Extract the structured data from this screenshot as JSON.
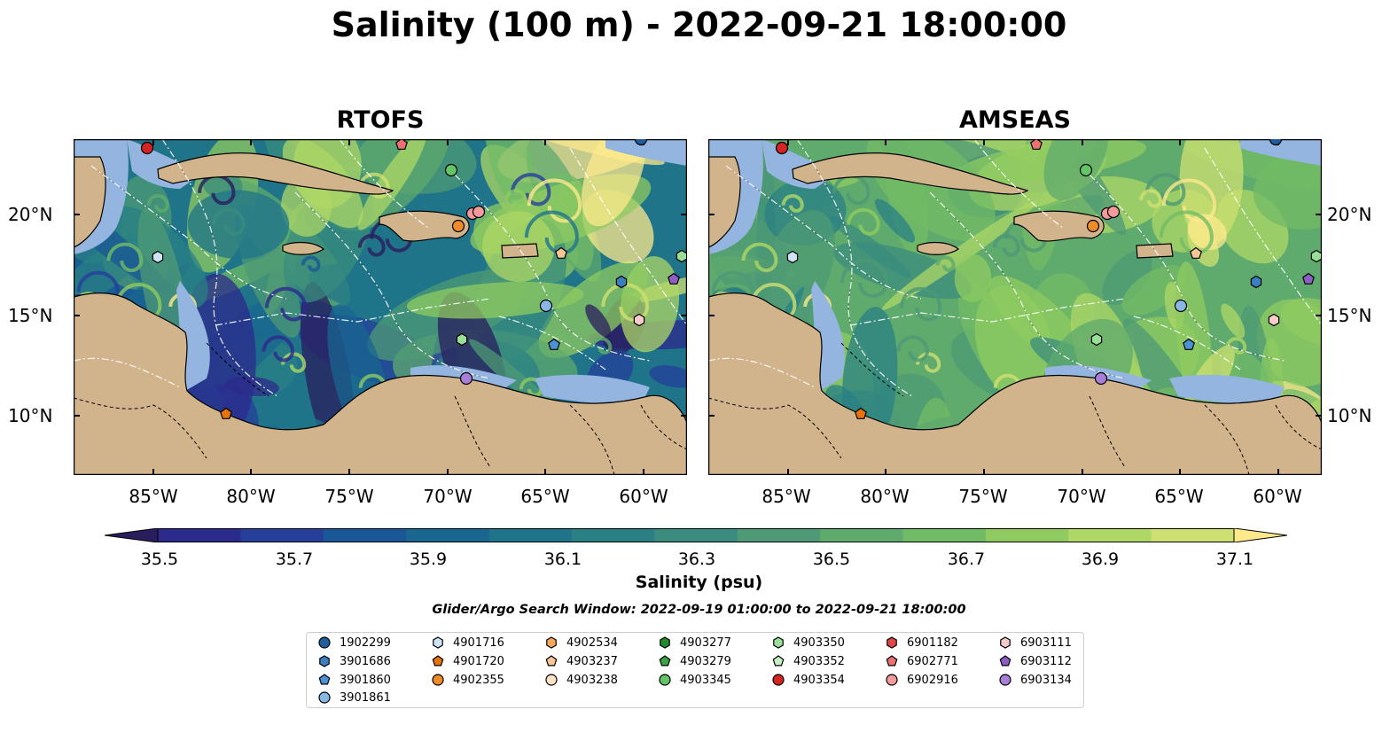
{
  "title": "Salinity (100 m) - 2022-09-21 18:00:00",
  "panels": [
    {
      "title": "RTOFS",
      "field": "rtofs"
    },
    {
      "title": "AMSEAS",
      "field": "amseas"
    }
  ],
  "lon_ticks": [
    "85°W",
    "80°W",
    "75°W",
    "70°W",
    "65°W",
    "60°W"
  ],
  "lat_ticks": [
    "20°N",
    "15°N",
    "10°N"
  ],
  "colorbar": {
    "label": "Salinity (psu)",
    "min": 35.5,
    "max": 37.1,
    "step": 0.1,
    "extend": "both",
    "ticks": [
      "35.5",
      "35.7",
      "35.9",
      "36.1",
      "36.3",
      "36.5",
      "36.7",
      "36.9",
      "37.1"
    ],
    "colors": [
      "#2a1d5e",
      "#2c2a8c",
      "#253f9b",
      "#1a5796",
      "#196690",
      "#1f7489",
      "#2a8084",
      "#3a8c7e",
      "#4e9976",
      "#5faa6d",
      "#72bb66",
      "#8fcb60",
      "#aed765",
      "#cfe072",
      "#fde98c"
    ]
  },
  "search_window": "Glider/Argo Search Window: 2022-09-19 01:00:00 to 2022-09-21 18:00:00",
  "legend": [
    {
      "id": "1902299",
      "marker": "circle",
      "color": "#1f5d9e"
    },
    {
      "id": "3901686",
      "marker": "hexagon",
      "color": "#3a7fc2"
    },
    {
      "id": "3901860",
      "marker": "pentagon",
      "color": "#4b93d6"
    },
    {
      "id": "3901861",
      "marker": "circle",
      "color": "#88b9e6"
    },
    {
      "id": "4901716",
      "marker": "hexagon",
      "color": "#cde4f7"
    },
    {
      "id": "4901720",
      "marker": "pentagon",
      "color": "#e8730c"
    },
    {
      "id": "4902355",
      "marker": "circle",
      "color": "#f08b2a"
    },
    {
      "id": "4902534",
      "marker": "hexagon",
      "color": "#f7a85a"
    },
    {
      "id": "4903237",
      "marker": "pentagon",
      "color": "#f8c596"
    },
    {
      "id": "4903238",
      "marker": "circle",
      "color": "#fde2c8"
    },
    {
      "id": "4903277",
      "marker": "hexagon",
      "color": "#238b2d"
    },
    {
      "id": "4903279",
      "marker": "pentagon",
      "color": "#3aa346"
    },
    {
      "id": "4903345",
      "marker": "circle",
      "color": "#62c466"
    },
    {
      "id": "4903350",
      "marker": "hexagon",
      "color": "#9adf98"
    },
    {
      "id": "4903352",
      "marker": "pentagon",
      "color": "#c9f0c4"
    },
    {
      "id": "4903354",
      "marker": "circle",
      "color": "#d42424"
    },
    {
      "id": "6901182",
      "marker": "hexagon",
      "color": "#e04646"
    },
    {
      "id": "6902771",
      "marker": "pentagon",
      "color": "#ec7272"
    },
    {
      "id": "6902916",
      "marker": "circle",
      "color": "#f39a9a"
    },
    {
      "id": "6903111",
      "marker": "hexagon",
      "color": "#f9cccc"
    },
    {
      "id": "6903112",
      "marker": "pentagon",
      "color": "#8e5ec4"
    },
    {
      "id": "6903134",
      "marker": "circle",
      "color": "#a97ed8"
    }
  ],
  "map_colors": {
    "land": "#d2b48c",
    "shallow": "#94b5e0"
  }
}
